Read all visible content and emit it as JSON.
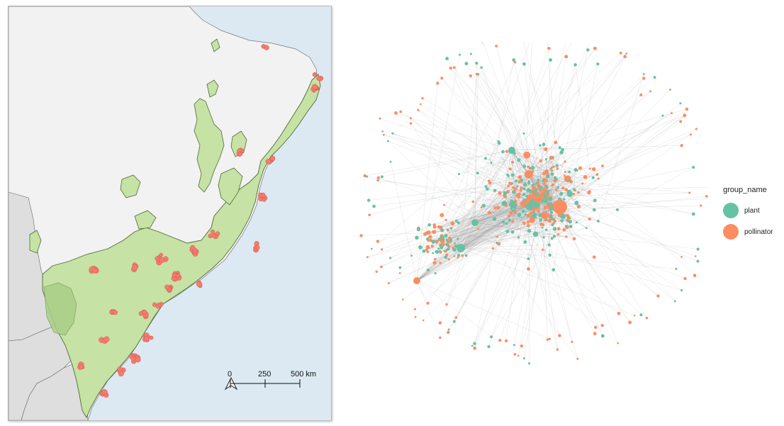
{
  "map": {
    "scale_bar": {
      "labels": [
        "0",
        "250",
        "500 km"
      ]
    },
    "north_arrow_icon": "north-arrow-icon",
    "colors": {
      "ocean": "#dce9f2",
      "land": "#f2f2f2",
      "neighbor_land": "#dedede",
      "forest_region": "#c6e2a4",
      "forest_border": "#4d6a3a",
      "sites": "#f27c6e"
    },
    "sites_description": "Study site markers along the Atlantic Forest region"
  },
  "network": {
    "colors": {
      "plant": "#66c2a5",
      "pollinator": "#fc8d62",
      "edge": "#a0a0a0"
    }
  },
  "legend": {
    "title": "group_name",
    "items": [
      {
        "label": "plant",
        "color": "#66c2a5"
      },
      {
        "label": "pollinator",
        "color": "#fc8d62"
      }
    ]
  }
}
